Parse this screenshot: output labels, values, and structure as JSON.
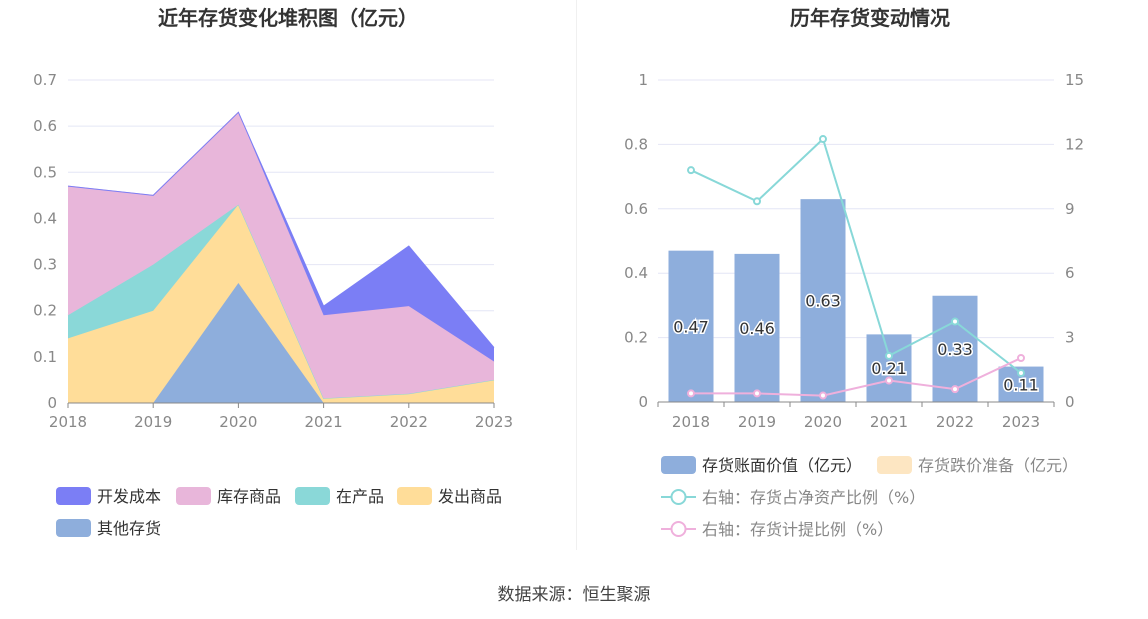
{
  "chart_data": [
    {
      "type": "area",
      "stacked": true,
      "title": "近年存货变化堆积图（亿元）",
      "categories": [
        "2018",
        "2019",
        "2020",
        "2021",
        "2022",
        "2023"
      ],
      "ylim": [
        0,
        0.7
      ],
      "y_ticks": [
        "0",
        "0.1",
        "0.2",
        "0.3",
        "0.4",
        "0.5",
        "0.6",
        "0.7"
      ],
      "grid": true,
      "legend_position": "bottom",
      "series": [
        {
          "name": "其他存货",
          "color": "#8eaedc",
          "values": [
            0,
            0,
            0.26,
            0,
            0,
            0
          ]
        },
        {
          "name": "发出商品",
          "color": "#ffdd99",
          "values": [
            0.14,
            0.2,
            0.17,
            0.01,
            0.02,
            0.05
          ]
        },
        {
          "name": "在产品",
          "color": "#8ad8d8",
          "values": [
            0.05,
            0.1,
            0,
            0,
            0,
            0
          ]
        },
        {
          "name": "库存商品",
          "color": "#e8b6da",
          "values": [
            0.28,
            0.15,
            0.2,
            0.18,
            0.19,
            0.04
          ]
        },
        {
          "name": "开发成本",
          "color": "#7b7ef5",
          "values": [
            0,
            0,
            0,
            0.02,
            0.13,
            0.03
          ]
        }
      ],
      "legend_order": [
        "开发成本",
        "库存商品",
        "在产品",
        "发出商品",
        "其他存货"
      ]
    },
    {
      "type": "bar",
      "title": "历年存货变动情况",
      "categories": [
        "2018",
        "2019",
        "2020",
        "2021",
        "2022",
        "2023"
      ],
      "ylim": [
        0,
        1
      ],
      "y_ticks": [
        "0",
        "0.2",
        "0.4",
        "0.6",
        "0.8",
        "1"
      ],
      "y2lim": [
        0,
        15
      ],
      "y2_ticks": [
        "0",
        "3",
        "6",
        "9",
        "12",
        "15"
      ],
      "grid": true,
      "legend_position": "bottom",
      "series": [
        {
          "name": "存货账面价值（亿元）",
          "type": "bar",
          "axis": "left",
          "color": "#8eaedc",
          "values": [
            0.47,
            0.46,
            0.63,
            0.21,
            0.33,
            0.11
          ],
          "labels": [
            "0.47",
            "0.46",
            "0.63",
            "0.21",
            "0.33",
            "0.11"
          ]
        },
        {
          "name": "存货跌价准备（亿元）",
          "type": "bar",
          "axis": "left",
          "color": "#fde6c2",
          "values": [
            0,
            0,
            0,
            0,
            0,
            0
          ]
        },
        {
          "name": "右轴：存货占净资产比例（%）",
          "type": "line",
          "axis": "right",
          "color": "#88d8d8",
          "values": [
            10.8,
            9.35,
            12.25,
            2.15,
            3.75,
            1.35
          ]
        },
        {
          "name": "右轴：存货计提比例（%）",
          "type": "line",
          "axis": "right",
          "color": "#efb0dc",
          "values": [
            0.4,
            0.4,
            0.3,
            1.0,
            0.6,
            2.05
          ]
        }
      ]
    }
  ],
  "footer": {
    "source": "数据来源：恒生聚源"
  }
}
